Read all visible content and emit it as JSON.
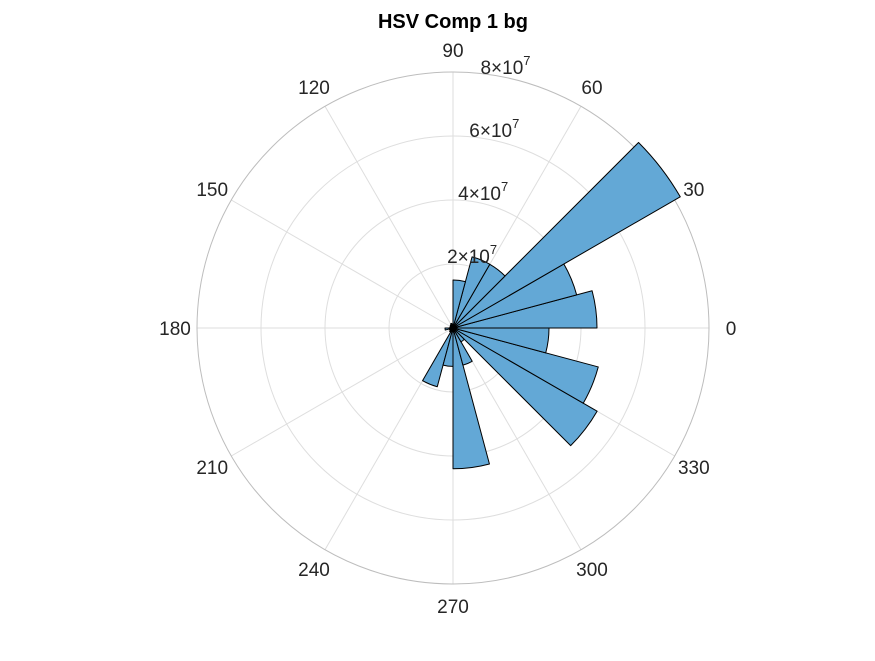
{
  "chart_data": {
    "type": "polar-histogram",
    "title": "HSV Comp 1 bg",
    "theta_ticks": [
      0,
      30,
      60,
      90,
      120,
      150,
      180,
      210,
      240,
      270,
      300,
      330
    ],
    "theta_tick_labels": [
      "0",
      "30",
      "60",
      "90",
      "120",
      "150",
      "180",
      "210",
      "240",
      "270",
      "300",
      "330"
    ],
    "r_ticks": [
      20000000,
      40000000,
      60000000,
      80000000
    ],
    "r_tick_labels": [
      {
        "mantissa": "2",
        "exponent": "7"
      },
      {
        "mantissa": "4",
        "exponent": "7"
      },
      {
        "mantissa": "6",
        "exponent": "7"
      },
      {
        "mantissa": "8",
        "exponent": "7"
      }
    ],
    "r_lim": [
      0,
      80000000
    ],
    "grid": true,
    "bin_width_deg": 15,
    "bins": [
      {
        "theta_start": 0,
        "theta_end": 15,
        "value": 45000000
      },
      {
        "theta_start": 15,
        "theta_end": 30,
        "value": 40000000
      },
      {
        "theta_start": 30,
        "theta_end": 45,
        "value": 82000000
      },
      {
        "theta_start": 45,
        "theta_end": 60,
        "value": 23000000
      },
      {
        "theta_start": 60,
        "theta_end": 75,
        "value": 23000000
      },
      {
        "theta_start": 75,
        "theta_end": 90,
        "value": 15000000
      },
      {
        "theta_start": 90,
        "theta_end": 105,
        "value": 1000000
      },
      {
        "theta_start": 105,
        "theta_end": 120,
        "value": 1500000
      },
      {
        "theta_start": 120,
        "theta_end": 135,
        "value": 1200000
      },
      {
        "theta_start": 135,
        "theta_end": 150,
        "value": 1000000
      },
      {
        "theta_start": 150,
        "theta_end": 165,
        "value": 800000
      },
      {
        "theta_start": 165,
        "theta_end": 180,
        "value": 1000000
      },
      {
        "theta_start": 180,
        "theta_end": 195,
        "value": 2500000
      },
      {
        "theta_start": 195,
        "theta_end": 210,
        "value": 1200000
      },
      {
        "theta_start": 210,
        "theta_end": 225,
        "value": 1000000
      },
      {
        "theta_start": 225,
        "theta_end": 240,
        "value": 1500000
      },
      {
        "theta_start": 240,
        "theta_end": 255,
        "value": 19000000
      },
      {
        "theta_start": 255,
        "theta_end": 270,
        "value": 12000000
      },
      {
        "theta_start": 270,
        "theta_end": 285,
        "value": 44000000
      },
      {
        "theta_start": 285,
        "theta_end": 300,
        "value": 12000000
      },
      {
        "theta_start": 300,
        "theta_end": 315,
        "value": 5000000
      },
      {
        "theta_start": 315,
        "theta_end": 330,
        "value": 52000000
      },
      {
        "theta_start": 330,
        "theta_end": 345,
        "value": 47000000
      },
      {
        "theta_start": 345,
        "theta_end": 360,
        "value": 30000000
      }
    ],
    "colors": {
      "bar_fill": "#63a8d6",
      "bar_edge": "#000000",
      "grid": "#dedede",
      "outer_circle": "#bdbdbd",
      "tick_text": "#262626",
      "title": "#000000"
    }
  }
}
